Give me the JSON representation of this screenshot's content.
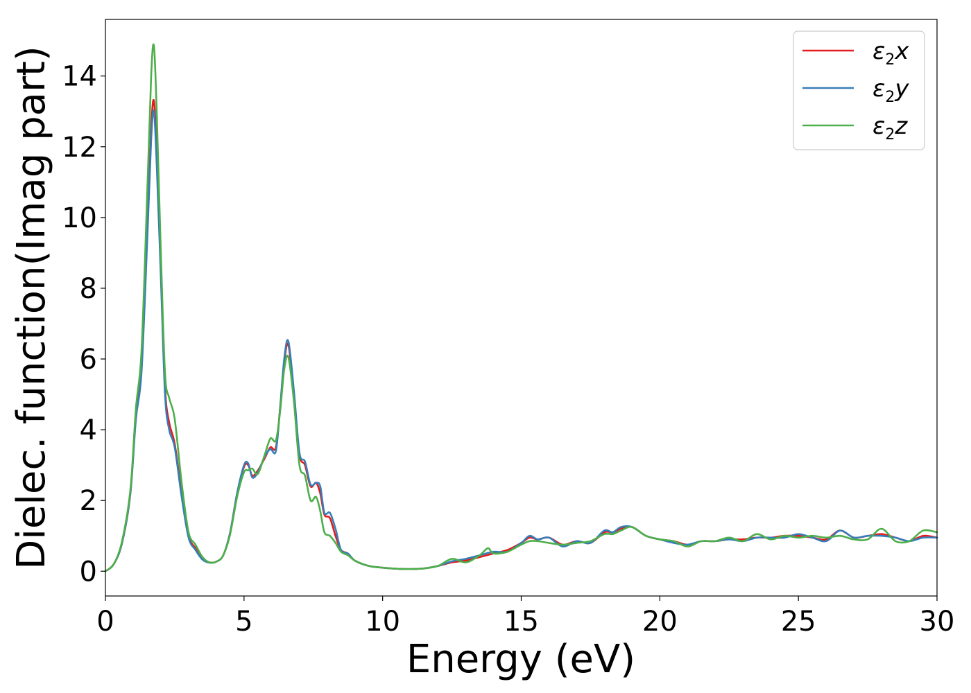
{
  "chart_data": {
    "type": "line",
    "title": "",
    "xlabel": "Energy (eV)",
    "ylabel": "Dielec. function(Imag part)",
    "xlim": [
      0,
      30
    ],
    "ylim": [
      -0.7,
      15.6
    ],
    "xticks": [
      0,
      5,
      10,
      15,
      20,
      25,
      30
    ],
    "yticks": [
      0,
      2,
      4,
      6,
      8,
      10,
      12,
      14
    ],
    "grid": false,
    "legend_position": "top-right",
    "series": [
      {
        "name": "ε2x",
        "legend": {
          "base": "ε",
          "sub": "2",
          "var": "x"
        },
        "color": "#e41a1c",
        "x": [
          0,
          0.3,
          0.6,
          0.9,
          1.1,
          1.3,
          1.5,
          1.65,
          1.75,
          1.85,
          2.0,
          2.15,
          2.3,
          2.5,
          2.75,
          3.0,
          3.25,
          3.5,
          3.75,
          4.0,
          4.25,
          4.5,
          4.75,
          5.0,
          5.15,
          5.3,
          5.5,
          5.75,
          5.95,
          6.15,
          6.3,
          6.45,
          6.6,
          6.8,
          7.0,
          7.2,
          7.4,
          7.6,
          7.75,
          7.9,
          8.1,
          8.3,
          8.5,
          8.75,
          9.0,
          9.5,
          10.0,
          10.5,
          11.0,
          11.5,
          12.0,
          12.5,
          13.0,
          13.5,
          14.0,
          14.5,
          15.0,
          15.3,
          15.6,
          16.0,
          16.5,
          17.0,
          17.5,
          18.0,
          18.3,
          18.6,
          19.0,
          19.5,
          20.0,
          20.5,
          21.0,
          21.5,
          22.0,
          22.5,
          23.0,
          23.5,
          24.0,
          24.5,
          25.0,
          25.5,
          26.0,
          26.5,
          27.0,
          27.5,
          28.0,
          28.5,
          29.0,
          29.5,
          30.0
        ],
        "y": [
          0,
          0.2,
          0.8,
          2.2,
          4.5,
          5.8,
          9.5,
          12.5,
          13.3,
          11.8,
          8.5,
          5.2,
          4.2,
          3.6,
          2.2,
          1.0,
          0.65,
          0.35,
          0.25,
          0.27,
          0.45,
          1.1,
          2.2,
          2.95,
          3.0,
          2.7,
          2.85,
          3.2,
          3.5,
          3.5,
          4.6,
          5.9,
          6.4,
          5.0,
          3.3,
          3.0,
          2.4,
          2.5,
          2.2,
          1.6,
          1.5,
          1.0,
          0.6,
          0.5,
          0.3,
          0.15,
          0.1,
          0.07,
          0.06,
          0.08,
          0.15,
          0.25,
          0.3,
          0.4,
          0.5,
          0.6,
          0.8,
          0.95,
          0.9,
          0.95,
          0.75,
          0.85,
          0.8,
          1.1,
          1.1,
          1.2,
          1.25,
          1.0,
          0.9,
          0.85,
          0.75,
          0.85,
          0.85,
          0.9,
          0.9,
          0.95,
          0.95,
          1.0,
          1.0,
          0.95,
          0.9,
          1.15,
          0.95,
          1.0,
          1.05,
          0.95,
          0.85,
          1.0,
          0.95
        ]
      },
      {
        "name": "ε2y",
        "legend": {
          "base": "ε",
          "sub": "2",
          "var": "y"
        },
        "color": "#377eb8",
        "x": [
          0,
          0.3,
          0.6,
          0.9,
          1.1,
          1.3,
          1.5,
          1.65,
          1.75,
          1.85,
          2.0,
          2.15,
          2.3,
          2.5,
          2.75,
          3.0,
          3.25,
          3.5,
          3.75,
          4.0,
          4.25,
          4.5,
          4.75,
          5.0,
          5.15,
          5.3,
          5.5,
          5.75,
          5.95,
          6.15,
          6.3,
          6.45,
          6.6,
          6.8,
          7.0,
          7.2,
          7.4,
          7.6,
          7.75,
          7.9,
          8.1,
          8.3,
          8.5,
          8.75,
          9.0,
          9.5,
          10.0,
          10.5,
          11.0,
          11.5,
          12.0,
          12.5,
          13.0,
          13.5,
          14.0,
          14.5,
          15.0,
          15.3,
          15.6,
          16.0,
          16.5,
          17.0,
          17.5,
          18.0,
          18.3,
          18.6,
          19.0,
          19.5,
          20.0,
          20.5,
          21.0,
          21.5,
          22.0,
          22.5,
          23.0,
          23.5,
          24.0,
          24.5,
          25.0,
          25.5,
          26.0,
          26.5,
          27.0,
          27.5,
          28.0,
          28.5,
          29.0,
          29.5,
          30.0
        ],
        "y": [
          0,
          0.2,
          0.8,
          2.2,
          4.3,
          5.6,
          9.2,
          12.2,
          13.0,
          11.5,
          8.3,
          5.0,
          4.0,
          3.5,
          2.1,
          0.95,
          0.6,
          0.33,
          0.24,
          0.27,
          0.45,
          1.1,
          2.2,
          3.0,
          3.05,
          2.65,
          2.8,
          3.25,
          3.45,
          3.4,
          4.6,
          6.0,
          6.5,
          5.1,
          3.35,
          3.1,
          2.45,
          2.5,
          2.4,
          1.65,
          1.65,
          1.2,
          0.6,
          0.5,
          0.3,
          0.15,
          0.1,
          0.07,
          0.06,
          0.08,
          0.15,
          0.28,
          0.35,
          0.45,
          0.55,
          0.55,
          0.8,
          1.0,
          0.9,
          0.95,
          0.7,
          0.85,
          0.8,
          1.15,
          1.1,
          1.25,
          1.25,
          1.0,
          0.9,
          0.8,
          0.75,
          0.85,
          0.85,
          0.9,
          0.85,
          0.95,
          0.95,
          0.95,
          1.05,
          0.95,
          0.85,
          1.15,
          0.95,
          1.0,
          1.0,
          0.95,
          0.85,
          0.95,
          0.95
        ]
      },
      {
        "name": "ε2z",
        "legend": {
          "base": "ε",
          "sub": "2",
          "var": "z"
        },
        "color": "#4daf4a",
        "x": [
          0,
          0.3,
          0.6,
          0.9,
          1.1,
          1.3,
          1.5,
          1.65,
          1.75,
          1.85,
          2.0,
          2.15,
          2.3,
          2.5,
          2.75,
          3.0,
          3.25,
          3.5,
          3.75,
          4.0,
          4.25,
          4.5,
          4.75,
          5.0,
          5.15,
          5.3,
          5.5,
          5.75,
          5.95,
          6.15,
          6.3,
          6.45,
          6.6,
          6.8,
          7.0,
          7.2,
          7.4,
          7.6,
          7.75,
          7.9,
          8.1,
          8.3,
          8.5,
          8.75,
          9.0,
          9.5,
          10.0,
          10.5,
          11.0,
          11.5,
          12.0,
          12.5,
          13.0,
          13.5,
          13.8,
          14.0,
          14.5,
          15.0,
          15.3,
          15.6,
          16.0,
          16.5,
          17.0,
          17.5,
          18.0,
          18.3,
          18.6,
          19.0,
          19.5,
          20.0,
          20.5,
          21.0,
          21.5,
          22.0,
          22.5,
          23.0,
          23.5,
          24.0,
          24.5,
          25.0,
          25.5,
          26.0,
          26.5,
          27.0,
          27.5,
          28.0,
          28.5,
          29.0,
          29.5,
          30.0
        ],
        "y": [
          0,
          0.2,
          0.85,
          2.3,
          4.6,
          6.2,
          10.5,
          14.0,
          14.85,
          13.0,
          9.0,
          5.6,
          4.9,
          4.3,
          2.5,
          1.1,
          0.75,
          0.4,
          0.25,
          0.27,
          0.45,
          1.05,
          2.1,
          2.8,
          2.85,
          2.9,
          2.75,
          3.3,
          3.75,
          3.7,
          4.5,
          5.7,
          6.05,
          4.8,
          3.0,
          2.7,
          2.0,
          2.1,
          1.7,
          1.1,
          1.0,
          0.8,
          0.55,
          0.45,
          0.3,
          0.15,
          0.1,
          0.07,
          0.06,
          0.08,
          0.15,
          0.35,
          0.25,
          0.45,
          0.65,
          0.5,
          0.55,
          0.75,
          0.85,
          0.85,
          0.8,
          0.75,
          0.8,
          0.85,
          1.05,
          1.05,
          1.15,
          1.25,
          1.0,
          0.9,
          0.85,
          0.7,
          0.85,
          0.85,
          0.95,
          0.85,
          1.05,
          0.9,
          1.0,
          0.95,
          1.0,
          0.95,
          1.0,
          0.9,
          0.9,
          1.2,
          0.85,
          0.85,
          1.15,
          1.1
        ]
      }
    ]
  }
}
